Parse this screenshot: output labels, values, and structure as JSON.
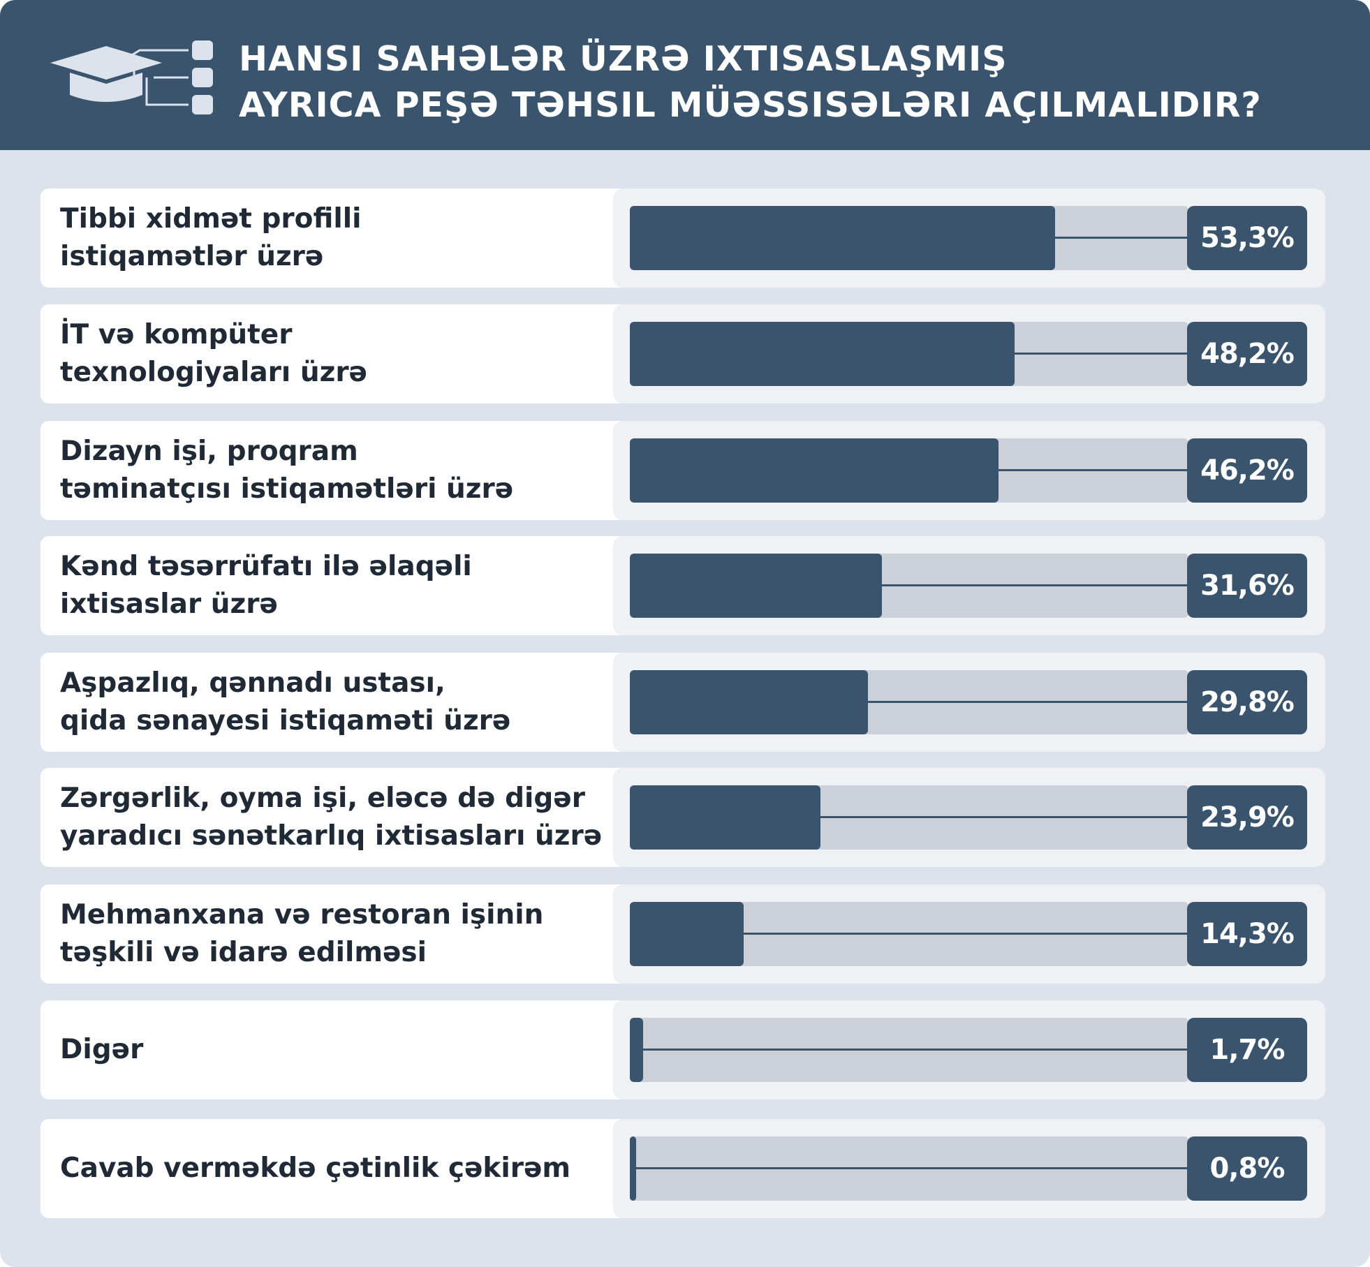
{
  "header": {
    "title_line1": "Hansı sahələr üzrə ixtisaslaşmış",
    "title_line2": "ayrıca peşə təhsil müəssisələri açılmalıdır?",
    "icon": "graduation-cap-icon"
  },
  "colors": {
    "header_bg": "#3b546d",
    "page_bg": "#dde3ec",
    "bar_fill": "#3b546d",
    "bar_track": "#ccd0d9",
    "label_bg": "#ffffff"
  },
  "chart_data": {
    "type": "bar",
    "orientation": "horizontal",
    "title": "Hansı sahələr üzrə ixtisaslaşmış ayrıca peşə təhsil müəssisələri açılmalıdır?",
    "xlim": [
      0,
      70
    ],
    "categories": [
      "Tibbi xidmət profilli\nistiqamətlər üzrə",
      "İT və kompüter\ntexnologiyaları üzrə",
      "Dizayn işi, proqram\ntəminatçısı istiqamətləri üzrə",
      "Kənd təsərrüfatı ilə əlaqəli\nixtisaslar üzrə",
      "Aşpazlıq, qənnadı ustası,\nqida sənayesi istiqaməti üzrə",
      "Zərgərlik, oyma işi, eləcə də digər\nyaradıcı sənətkarlıq ixtisasları üzrə",
      "Mehmanxana və restoran işinin\ntəşkili və idarə edilməsi",
      "Digər",
      "Cavab verməkdə çətinlik çəkirəm"
    ],
    "values": [
      53.3,
      48.2,
      46.2,
      31.6,
      29.8,
      23.9,
      14.3,
      1.7,
      0.8
    ],
    "value_labels": [
      "53,3%",
      "48,2%",
      "46,2%",
      "31,6%",
      "29,8%",
      "23,9%",
      "14,3%",
      "1,7%",
      "0,8%"
    ]
  }
}
